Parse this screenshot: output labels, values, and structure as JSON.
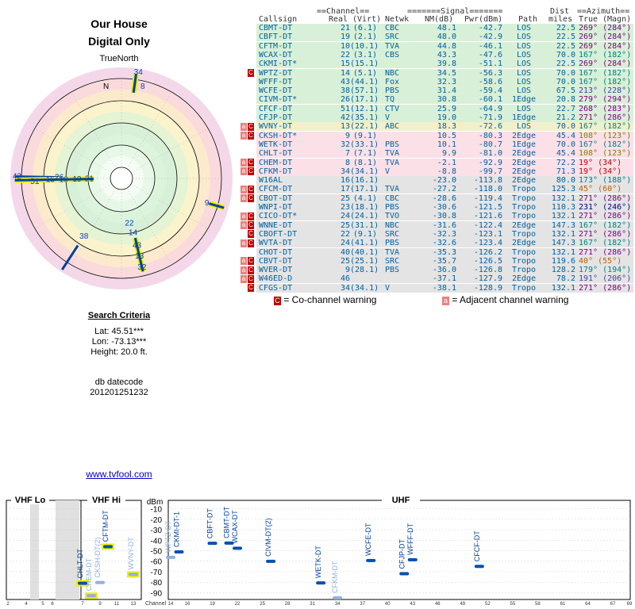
{
  "header": {
    "title_line1": "Our House",
    "title_line2": "Digital Only",
    "true_north": "TrueNorth",
    "north_letter": "N"
  },
  "polar_labels": [
    {
      "text": "34",
      "az": 9,
      "r": 0.97,
      "color": "#0040c0",
      "hl": true
    },
    {
      "text": "8",
      "az": 13,
      "r": 0.85,
      "color": "#0040c0",
      "hl": false
    },
    {
      "text": "9",
      "az": 106,
      "r": 0.8,
      "color": "#0040c0",
      "hl": false
    },
    {
      "text": "7",
      "az": 107,
      "r": 0.9,
      "color": "#0040c0",
      "hl": true
    },
    {
      "text": "26",
      "az": 271,
      "r": 0.56,
      "color": "#0040c0",
      "hl": false
    },
    {
      "text": "42",
      "az": 271,
      "r": 0.94,
      "color": "#0040c0",
      "hl": true
    },
    {
      "text": "51",
      "az": 268,
      "r": 0.78,
      "color": "#0040c0",
      "hl": false
    },
    {
      "text": "15",
      "az": 269,
      "r": 0.64,
      "color": "#0040c0",
      "hl": false
    },
    {
      "text": "10",
      "az": 269,
      "r": 0.52,
      "color": "#0040c0",
      "hl": false
    },
    {
      "text": "19",
      "az": 269,
      "r": 0.4,
      "color": "#0040c0",
      "hl": false
    },
    {
      "text": "21",
      "az": 269,
      "r": 0.29,
      "color": "#0040c0",
      "hl": false
    },
    {
      "text": "38",
      "az": 213,
      "r": 0.62,
      "color": "#0040c0",
      "hl": false
    },
    {
      "text": "22",
      "az": 170,
      "r": 0.41,
      "color": "#0040c0",
      "hl": false
    },
    {
      "text": "14",
      "az": 168,
      "r": 0.5,
      "color": "#0040c0",
      "hl": false
    },
    {
      "text": "43",
      "az": 167,
      "r": 0.62,
      "color": "#0040c0",
      "hl": false
    },
    {
      "text": "13",
      "az": 167,
      "r": 0.72,
      "color": "#0040c0",
      "hl": true
    },
    {
      "text": "32",
      "az": 167,
      "r": 0.82,
      "color": "#0040c0",
      "hl": true
    }
  ],
  "search": {
    "title": "Search Criteria",
    "lat": "Lat: 45.51***",
    "lon": "Lon: -73.13***",
    "height": "Height: 20.0 ft.",
    "db_label": "db datecode",
    "db_code": "201201251232",
    "link": "www.tvfool.com"
  },
  "table": {
    "h_channel": "==Channel==",
    "h_signal": "=======Signal=======",
    "h_dist": "Dist",
    "h_azimuth": "==Azimuth==",
    "c_callsign": "Callsign",
    "c_real": "Real",
    "c_virt": "(Virt)",
    "c_netwk": "Netwk",
    "c_nm": "NM(dB)",
    "c_pwr": "Pwr(dBm)",
    "c_path": "Path",
    "c_miles": "miles",
    "c_true": "True",
    "c_magn": "(Magn)",
    "rows": [
      {
        "cs": "CBMT-DT",
        "rl": "21",
        "vt": "(6.1)",
        "nw": "CBC",
        "nm": "48.1",
        "pw": "-42.7",
        "pt": "LOS",
        "ds": "22.5",
        "az": "269°",
        "mg": "(284°)",
        "bg": "#d8f0d8",
        "w": "",
        "azc": "#800080"
      },
      {
        "cs": "CBFT-DT",
        "rl": "19",
        "vt": "(2.1)",
        "nw": "SRC",
        "nm": "48.0",
        "pw": "-42.9",
        "pt": "LOS",
        "ds": "22.5",
        "az": "269°",
        "mg": "(284°)",
        "bg": "#d8f0d8",
        "w": "",
        "azc": "#800080"
      },
      {
        "cs": "CFTM-DT",
        "rl": "10",
        "vt": "(10.1)",
        "nw": "TVA",
        "nm": "44.8",
        "pw": "-46.1",
        "pt": "LOS",
        "ds": "22.5",
        "az": "269°",
        "mg": "(284°)",
        "bg": "#d8f0d8",
        "w": "",
        "azc": "#800080"
      },
      {
        "cs": "WCAX-DT",
        "rl": "22",
        "vt": "(3.1)",
        "nw": "CBS",
        "nm": "43.3",
        "pw": "-47.6",
        "pt": "LOS",
        "ds": "70.0",
        "az": "167°",
        "mg": "(182°)",
        "bg": "#d8f0d8",
        "w": "",
        "azc": "#008080"
      },
      {
        "cs": "CKMI-DT*",
        "rl": "15",
        "vt": "(15.1)",
        "nw": "",
        "nm": "39.8",
        "pw": "-51.1",
        "pt": "LOS",
        "ds": "22.5",
        "az": "269°",
        "mg": "(284°)",
        "bg": "#d8f0d8",
        "w": "",
        "azc": "#800080"
      },
      {
        "cs": "WPTZ-DT",
        "rl": "14",
        "vt": "(5.1)",
        "nw": "NBC",
        "nm": "34.5",
        "pw": "-56.3",
        "pt": "LOS",
        "ds": "70.0",
        "az": "167°",
        "mg": "(182°)",
        "bg": "#d8f0d8",
        "w": "C",
        "azc": "#008080"
      },
      {
        "cs": "WFFF-DT",
        "rl": "43",
        "vt": "(44.1)",
        "nw": "Fox",
        "nm": "32.3",
        "pw": "-58.6",
        "pt": "LOS",
        "ds": "70.0",
        "az": "167°",
        "mg": "(182°)",
        "bg": "#d8f0d8",
        "w": "",
        "azc": "#008080"
      },
      {
        "cs": "WCFE-DT",
        "rl": "38",
        "vt": "(57.1)",
        "nw": "PBS",
        "nm": "31.4",
        "pw": "-59.4",
        "pt": "LOS",
        "ds": "67.5",
        "az": "213°",
        "mg": "(228°)",
        "bg": "#d8f0d8",
        "w": "",
        "azc": "#4040a0"
      },
      {
        "cs": "CIVM-DT*",
        "rl": "26",
        "vt": "(17.1)",
        "nw": "TQ",
        "nm": "30.8",
        "pw": "-60.1",
        "pt": "1Edge",
        "ds": "20.8",
        "az": "279°",
        "mg": "(294°)",
        "bg": "#d8f0d8",
        "w": "",
        "azc": "#800080"
      },
      {
        "cs": "CFCF-DT",
        "rl": "51",
        "vt": "(12.1)",
        "nw": "CTV",
        "nm": "25.9",
        "pw": "-64.9",
        "pt": "LOS",
        "ds": "22.7",
        "az": "268°",
        "mg": "(283°)",
        "bg": "#d8f0d8",
        "w": "",
        "azc": "#800080"
      },
      {
        "cs": "CFJP-DT",
        "rl": "42",
        "vt": "(35.1)",
        "nw": "V",
        "nm": "19.0",
        "pw": "-71.9",
        "pt": "1Edge",
        "ds": "21.2",
        "az": "271°",
        "mg": "(286°)",
        "bg": "#d8f0d8",
        "w": "",
        "azc": "#800080"
      },
      {
        "cs": "WVNY-DT",
        "rl": "13",
        "vt": "(22.1)",
        "nw": "ABC",
        "nm": "18.3",
        "pw": "-72.6",
        "pt": "LOS",
        "ds": "70.0",
        "az": "167°",
        "mg": "(182°)",
        "bg": "#f0f0cc",
        "w": "AC",
        "azc": "#008080"
      },
      {
        "cs": "CKSH-DT*",
        "rl": "9",
        "vt": "(9.1)",
        "nw": "",
        "nm": "10.5",
        "pw": "-80.3",
        "pt": "2Edge",
        "ds": "45.4",
        "az": "108°",
        "mg": "(123°)",
        "bg": "#fbe0e8",
        "w": "AC",
        "azc": "#808000"
      },
      {
        "cs": "WETK-DT",
        "rl": "32",
        "vt": "(33.1)",
        "nw": "PBS",
        "nm": "10.1",
        "pw": "-80.7",
        "pt": "1Edge",
        "ds": "70.0",
        "az": "167°",
        "mg": "(182°)",
        "bg": "#fbe0e8",
        "w": "",
        "azc": "#008080"
      },
      {
        "cs": "CHLT-DT",
        "rl": "7",
        "vt": "(7.1)",
        "nw": "TVA",
        "nm": "9.9",
        "pw": "-81.0",
        "pt": "2Edge",
        "ds": "45.4",
        "az": "108°",
        "mg": "(123°)",
        "bg": "#fbe0e8",
        "w": "",
        "azc": "#808000"
      },
      {
        "cs": "CHEM-DT",
        "rl": "8",
        "vt": "(8.1)",
        "nw": "TVA",
        "nm": "-2.1",
        "pw": "-92.9",
        "pt": "2Edge",
        "ds": "72.2",
        "az": "19°",
        "mg": "(34°)",
        "bg": "#fbe0e8",
        "w": "AC",
        "azc": "#c00000"
      },
      {
        "cs": "CFKM-DT",
        "rl": "34",
        "vt": "(34.1)",
        "nw": "V",
        "nm": "-8.8",
        "pw": "-99.7",
        "pt": "2Edge",
        "ds": "71.3",
        "az": "19°",
        "mg": "(34°)",
        "bg": "#fbe0e8",
        "w": "AC",
        "azc": "#c00000"
      },
      {
        "cs": "W16AL",
        "rl": "16",
        "vt": "(16.1)",
        "nw": "",
        "nm": "-23.0",
        "pw": "-113.8",
        "pt": "2Edge",
        "ds": "80.0",
        "az": "173°",
        "mg": "(188°)",
        "bg": "#e4e4e4",
        "w": "",
        "azc": "#008080"
      },
      {
        "cs": "CFCM-DT",
        "rl": "17",
        "vt": "(17.1)",
        "nw": "TVA",
        "nm": "-27.2",
        "pw": "-118.0",
        "pt": "Tropo",
        "ds": "125.3",
        "az": "45°",
        "mg": "(60°)",
        "bg": "#e4e4e4",
        "w": "AC",
        "azc": "#c06000"
      },
      {
        "cs": "CBOT-DT",
        "rl": "25",
        "vt": "(4.1)",
        "nw": "CBC",
        "nm": "-28.6",
        "pw": "-119.4",
        "pt": "Tropo",
        "ds": "132.1",
        "az": "271°",
        "mg": "(286°)",
        "bg": "#e4e4e4",
        "w": "AC",
        "azc": "#800080"
      },
      {
        "cs": "WNPI-DT",
        "rl": "23",
        "vt": "(18.1)",
        "nw": "PBS",
        "nm": "-30.6",
        "pw": "-121.5",
        "pt": "Tropo",
        "ds": "110.3",
        "az": "231°",
        "mg": "(246°)",
        "bg": "#e4e4e4",
        "w": "",
        "azc": "#000080"
      },
      {
        "cs": "CICO-DT*",
        "rl": "24",
        "vt": "(24.1)",
        "nw": "TVO",
        "nm": "-30.8",
        "pw": "-121.6",
        "pt": "Tropo",
        "ds": "132.1",
        "az": "271°",
        "mg": "(286°)",
        "bg": "#e4e4e4",
        "w": "AC",
        "azc": "#800080"
      },
      {
        "cs": "WNNE-DT",
        "rl": "25",
        "vt": "(31.1)",
        "nw": "NBC",
        "nm": "-31.6",
        "pw": "-122.4",
        "pt": "2Edge",
        "ds": "147.3",
        "az": "167°",
        "mg": "(182°)",
        "bg": "#e4e4e4",
        "w": "AC",
        "azc": "#008080"
      },
      {
        "cs": "CBOFT-DT",
        "rl": "22",
        "vt": "(9.1)",
        "nw": "SRC",
        "nm": "-32.3",
        "pw": "-123.1",
        "pt": "Tropo",
        "ds": "132.1",
        "az": "271°",
        "mg": "(286°)",
        "bg": "#e4e4e4",
        "w": "C",
        "azc": "#800080"
      },
      {
        "cs": "WVTA-DT",
        "rl": "24",
        "vt": "(41.1)",
        "nw": "PBS",
        "nm": "-32.6",
        "pw": "-123.4",
        "pt": "2Edge",
        "ds": "147.3",
        "az": "167°",
        "mg": "(182°)",
        "bg": "#e4e4e4",
        "w": "AC",
        "azc": "#008080"
      },
      {
        "cs": "CHOT-DT",
        "rl": "40",
        "vt": "(40.1)",
        "nw": "TVA",
        "nm": "-35.3",
        "pw": "-126.2",
        "pt": "Tropo",
        "ds": "132.1",
        "az": "271°",
        "mg": "(286°)",
        "bg": "#e4e4e4",
        "w": "",
        "azc": "#800080"
      },
      {
        "cs": "CBVT-DT",
        "rl": "25",
        "vt": "(25.1)",
        "nw": "SRC",
        "nm": "-35.7",
        "pw": "-126.5",
        "pt": "Tropo",
        "ds": "119.6",
        "az": "40°",
        "mg": "(55°)",
        "bg": "#e4e4e4",
        "w": "AC",
        "azc": "#c06000"
      },
      {
        "cs": "WVER-DT",
        "rl": "9",
        "vt": "(28.1)",
        "nw": "PBS",
        "nm": "-36.0",
        "pw": "-126.8",
        "pt": "Tropo",
        "ds": "128.2",
        "az": "179°",
        "mg": "(194°)",
        "bg": "#e4e4e4",
        "w": "AC",
        "azc": "#008080"
      },
      {
        "cs": "W46ED-D",
        "rl": "46",
        "vt": "",
        "nw": "",
        "nm": "-37.1",
        "pw": "-127.9",
        "pt": "2Edge",
        "ds": "78.2",
        "az": "191°",
        "mg": "(206°)",
        "bg": "#e4e4e4",
        "w": "AC",
        "azc": "#4040a0"
      },
      {
        "cs": "CFGS-DT",
        "rl": "34",
        "vt": "(34.1)",
        "nw": "V",
        "nm": "-38.1",
        "pw": "-128.9",
        "pt": "Tropo",
        "ds": "132.1",
        "az": "271°",
        "mg": "(286°)",
        "bg": "#e4e4e4",
        "w": "C",
        "azc": "#800080"
      }
    ],
    "legend_co_mark": "C",
    "legend_co": "= Co-channel warning",
    "legend_adj_mark": "a",
    "legend_adj": "= Adjacent channel warning"
  },
  "chart_data": {
    "type": "bar",
    "bands": [
      "VHF Lo",
      "VHF Hi",
      "UHF"
    ],
    "ylabel": "dBm",
    "yticks": [
      "-10",
      "-20",
      "-30",
      "-40",
      "-50",
      "-60",
      "-70",
      "-80",
      "-90"
    ],
    "ylim": [
      -95,
      -5
    ],
    "xlabel": "Channel",
    "xticks": [
      "2",
      "4",
      "5",
      "6",
      "7",
      "9",
      "11",
      "13",
      "14",
      "16",
      "19",
      "22",
      "25",
      "28",
      "31",
      "34",
      "37",
      "40",
      "43",
      "46",
      "49",
      "52",
      "55",
      "58",
      "61",
      "64",
      "67",
      "69"
    ],
    "series": [
      {
        "name": "CHLT-DT",
        "channel": 7,
        "dbm": -81.0,
        "hl": true,
        "faded": false
      },
      {
        "name": "CHEM-DT",
        "channel": 8,
        "dbm": -92.9,
        "hl": true,
        "faded": true
      },
      {
        "name": "CKSH-DT(2)",
        "channel": 9,
        "dbm": -80.3,
        "hl": false,
        "faded": true
      },
      {
        "name": "CFTM-DT",
        "channel": 10,
        "dbm": -46.1,
        "hl": true,
        "faded": false
      },
      {
        "name": "WVNY-DT",
        "channel": 13,
        "dbm": -72.6,
        "hl": true,
        "faded": true
      },
      {
        "name": "WPTZ-DT",
        "channel": 14,
        "dbm": -56.3,
        "hl": false,
        "faded": true
      },
      {
        "name": "CKMI-DT-1",
        "channel": 15,
        "dbm": -51.1,
        "hl": false,
        "faded": false
      },
      {
        "name": "CBFT-DT",
        "channel": 19,
        "dbm": -42.9,
        "hl": false,
        "faded": false
      },
      {
        "name": "CBMT-DT",
        "channel": 21,
        "dbm": -42.7,
        "hl": false,
        "faded": false
      },
      {
        "name": "WCAX-DT",
        "channel": 22,
        "dbm": -47.6,
        "hl": false,
        "faded": false
      },
      {
        "name": "CIVM-DT(2)",
        "channel": 26,
        "dbm": -60.1,
        "hl": false,
        "faded": false
      },
      {
        "name": "WETK-DT",
        "channel": 32,
        "dbm": -80.7,
        "hl": false,
        "faded": false
      },
      {
        "name": "CFKM-DT",
        "channel": 34,
        "dbm": -99.7,
        "hl": false,
        "faded": true
      },
      {
        "name": "WCFE-DT",
        "channel": 38,
        "dbm": -59.4,
        "hl": false,
        "faded": false
      },
      {
        "name": "CFJP-DT",
        "channel": 42,
        "dbm": -71.9,
        "hl": false,
        "faded": false
      },
      {
        "name": "WFFF-DT",
        "channel": 43,
        "dbm": -58.6,
        "hl": false,
        "faded": false
      },
      {
        "name": "CFCF-DT",
        "channel": 51,
        "dbm": -64.9,
        "hl": false,
        "faded": false
      }
    ]
  }
}
